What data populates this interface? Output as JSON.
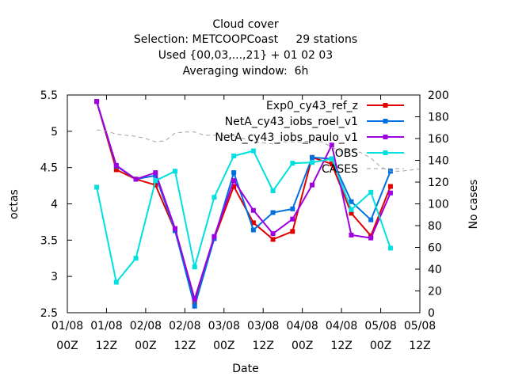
{
  "chart_data": {
    "type": "line",
    "title_lines": [
      "Cloud cover",
      "Selection: METCOOPCoast     29 stations",
      "Used {00,03,...,21} + 01 02 03",
      "Averaging window:  6h"
    ],
    "xlabel": "Date",
    "ylabel": "octas",
    "y2label": "No cases",
    "xlim": [
      0,
      108
    ],
    "ylim": [
      2.5,
      5.5
    ],
    "y2lim": [
      0,
      200
    ],
    "x_ticks": [
      {
        "pos": 0,
        "line1": "01/08",
        "line2": "00Z"
      },
      {
        "pos": 12,
        "line1": "01/08",
        "line2": "12Z"
      },
      {
        "pos": 24,
        "line1": "02/08",
        "line2": "00Z"
      },
      {
        "pos": 36,
        "line1": "02/08",
        "line2": "12Z"
      },
      {
        "pos": 48,
        "line1": "03/08",
        "line2": "00Z"
      },
      {
        "pos": 60,
        "line1": "03/08",
        "line2": "12Z"
      },
      {
        "pos": 72,
        "line1": "04/08",
        "line2": "00Z"
      },
      {
        "pos": 84,
        "line1": "04/08",
        "line2": "12Z"
      },
      {
        "pos": 96,
        "line1": "05/08",
        "line2": "00Z"
      },
      {
        "pos": 108,
        "line1": "05/08",
        "line2": "12Z"
      }
    ],
    "y_ticks": [
      "2.5",
      "3",
      "3.5",
      "4",
      "4.5",
      "5",
      "5.5"
    ],
    "y2_ticks": [
      "0",
      "20",
      "40",
      "60",
      "80",
      "100",
      "120",
      "140",
      "160",
      "180",
      "200"
    ],
    "x": [
      9,
      15,
      21,
      27,
      33,
      39,
      45,
      51,
      57,
      63,
      69,
      75,
      81,
      87,
      93,
      99
    ],
    "legend_position": "top-right",
    "series": [
      {
        "name": "Exp0_cy43_ref_z",
        "axis": "y",
        "color": "#e00000",
        "marker": "square",
        "dashed": false,
        "values": [
          5.41,
          4.47,
          4.34,
          4.26,
          3.63,
          2.64,
          3.52,
          4.24,
          3.74,
          3.51,
          3.62,
          4.64,
          4.55,
          3.87,
          3.56,
          4.24
        ]
      },
      {
        "name": "NetA_cy43_iobs_roel_v1",
        "axis": "y",
        "color": "#0070e0",
        "marker": "square",
        "dashed": false,
        "values": [
          5.41,
          4.52,
          4.34,
          4.39,
          3.63,
          2.59,
          3.52,
          4.43,
          3.64,
          3.88,
          3.93,
          4.64,
          4.62,
          4.03,
          3.78,
          4.45
        ]
      },
      {
        "name": "NetA_cy43_iobs_paulo_v1",
        "axis": "y",
        "color": "#a000e0",
        "marker": "square",
        "dashed": false,
        "values": [
          5.41,
          4.53,
          4.34,
          4.43,
          3.66,
          2.69,
          3.55,
          4.32,
          3.91,
          3.59,
          3.79,
          4.26,
          4.81,
          3.57,
          3.53,
          4.15
        ]
      },
      {
        "name": "OBS",
        "axis": "y",
        "color": "#00e0e0",
        "marker": "square",
        "dashed": false,
        "values": [
          4.23,
          2.92,
          3.25,
          4.32,
          4.45,
          3.13,
          4.09,
          4.66,
          4.73,
          4.18,
          4.56,
          4.57,
          4.62,
          3.92,
          4.16,
          3.39
        ]
      },
      {
        "name": "CASES",
        "axis": "y2",
        "color": "#a0a0a0",
        "marker": "none",
        "dashed": true,
        "x": [
          9,
          12,
          15,
          18,
          21,
          24,
          27,
          30,
          33,
          36,
          39,
          42,
          45,
          48,
          51,
          54,
          57,
          60,
          63,
          66,
          69,
          72,
          75,
          78,
          81,
          84,
          87,
          90,
          93,
          96,
          99,
          102,
          105,
          108
        ],
        "values": [
          168,
          167,
          164,
          163,
          162,
          160,
          157,
          158,
          165,
          166,
          166,
          163,
          163,
          163,
          162,
          160,
          157,
          156,
          155,
          157,
          157,
          157,
          158,
          157,
          152,
          148,
          150,
          147,
          142,
          134,
          130,
          130,
          131,
          132
        ]
      }
    ]
  }
}
